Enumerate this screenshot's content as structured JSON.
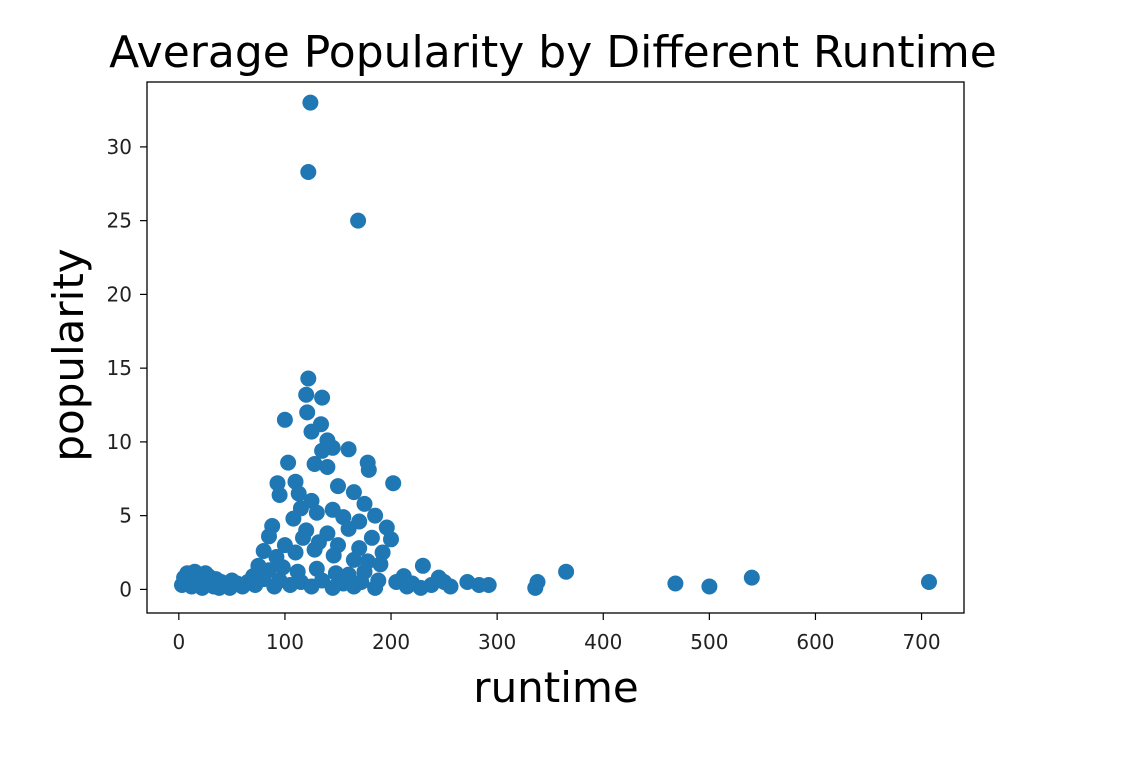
{
  "chart_data": {
    "type": "scatter",
    "title": "Average Popularity by Different Runtime",
    "xlabel": "runtime",
    "ylabel": "popularity",
    "xlim": [
      -30,
      740
    ],
    "ylim": [
      -1.6,
      34.4
    ],
    "xticks": [
      0,
      100,
      200,
      300,
      400,
      500,
      600,
      700
    ],
    "yticks": [
      0,
      5,
      10,
      15,
      20,
      25,
      30
    ],
    "marker_color": "#1f77b4",
    "grid": false,
    "series": [
      {
        "name": "popularity",
        "points": [
          [
            124,
            33.0
          ],
          [
            122,
            28.3
          ],
          [
            169,
            25.0
          ],
          [
            122,
            14.3
          ],
          [
            100,
            11.5
          ],
          [
            120,
            13.2
          ],
          [
            135,
            13.0
          ],
          [
            121,
            12.0
          ],
          [
            134,
            11.2
          ],
          [
            125,
            10.7
          ],
          [
            140,
            10.1
          ],
          [
            145,
            9.6
          ],
          [
            135,
            9.4
          ],
          [
            160,
            9.5
          ],
          [
            103,
            8.6
          ],
          [
            128,
            8.5
          ],
          [
            178,
            8.6
          ],
          [
            140,
            8.3
          ],
          [
            179,
            8.1
          ],
          [
            93,
            7.2
          ],
          [
            202,
            7.2
          ],
          [
            110,
            7.3
          ],
          [
            150,
            7.0
          ],
          [
            95,
            6.4
          ],
          [
            113,
            6.5
          ],
          [
            165,
            6.6
          ],
          [
            175,
            5.8
          ],
          [
            185,
            5.0
          ],
          [
            196,
            4.2
          ],
          [
            170,
            4.6
          ],
          [
            200,
            3.4
          ],
          [
            115,
            5.5
          ],
          [
            125,
            6.0
          ],
          [
            108,
            4.8
          ],
          [
            130,
            5.2
          ],
          [
            145,
            5.4
          ],
          [
            155,
            4.9
          ],
          [
            88,
            4.3
          ],
          [
            85,
            3.6
          ],
          [
            120,
            4.0
          ],
          [
            140,
            3.8
          ],
          [
            160,
            4.1
          ],
          [
            100,
            3.0
          ],
          [
            117,
            3.5
          ],
          [
            132,
            3.2
          ],
          [
            150,
            3.0
          ],
          [
            170,
            2.8
          ],
          [
            182,
            3.5
          ],
          [
            192,
            2.5
          ],
          [
            80,
            2.6
          ],
          [
            92,
            2.2
          ],
          [
            110,
            2.5
          ],
          [
            128,
            2.7
          ],
          [
            146,
            2.3
          ],
          [
            165,
            2.0
          ],
          [
            178,
            1.9
          ],
          [
            190,
            1.7
          ],
          [
            75,
            1.6
          ],
          [
            85,
            1.3
          ],
          [
            98,
            1.5
          ],
          [
            112,
            1.2
          ],
          [
            130,
            1.4
          ],
          [
            148,
            1.1
          ],
          [
            160,
            1.0
          ],
          [
            175,
            1.2
          ],
          [
            70,
            0.9
          ],
          [
            80,
            0.7
          ],
          [
            95,
            0.6
          ],
          [
            115,
            0.5
          ],
          [
            135,
            0.6
          ],
          [
            155,
            0.4
          ],
          [
            172,
            0.5
          ],
          [
            188,
            0.6
          ],
          [
            65,
            0.5
          ],
          [
            72,
            0.3
          ],
          [
            90,
            0.2
          ],
          [
            105,
            0.3
          ],
          [
            125,
            0.2
          ],
          [
            145,
            0.1
          ],
          [
            165,
            0.2
          ],
          [
            185,
            0.1
          ],
          [
            60,
            0.2
          ],
          [
            55,
            0.4
          ],
          [
            50,
            0.6
          ],
          [
            45,
            0.3
          ],
          [
            40,
            0.5
          ],
          [
            35,
            0.7
          ],
          [
            30,
            0.4
          ],
          [
            25,
            1.1
          ],
          [
            20,
            0.9
          ],
          [
            15,
            1.2
          ],
          [
            10,
            0.6
          ],
          [
            5,
            0.8
          ],
          [
            3,
            0.3
          ],
          [
            8,
            1.1
          ],
          [
            12,
            0.2
          ],
          [
            18,
            0.5
          ],
          [
            22,
            0.1
          ],
          [
            28,
            0.9
          ],
          [
            33,
            0.2
          ],
          [
            38,
            0.1
          ],
          [
            48,
            0.1
          ],
          [
            212,
            0.9
          ],
          [
            220,
            0.4
          ],
          [
            230,
            1.6
          ],
          [
            238,
            0.3
          ],
          [
            245,
            0.8
          ],
          [
            250,
            0.5
          ],
          [
            256,
            0.2
          ],
          [
            205,
            0.5
          ],
          [
            215,
            0.2
          ],
          [
            228,
            0.1
          ],
          [
            272,
            0.5
          ],
          [
            283,
            0.3
          ],
          [
            292,
            0.3
          ],
          [
            336,
            0.1
          ],
          [
            338,
            0.5
          ],
          [
            365,
            1.2
          ],
          [
            468,
            0.4
          ],
          [
            500,
            0.2
          ],
          [
            540,
            0.8
          ],
          [
            707,
            0.5
          ]
        ]
      }
    ]
  }
}
